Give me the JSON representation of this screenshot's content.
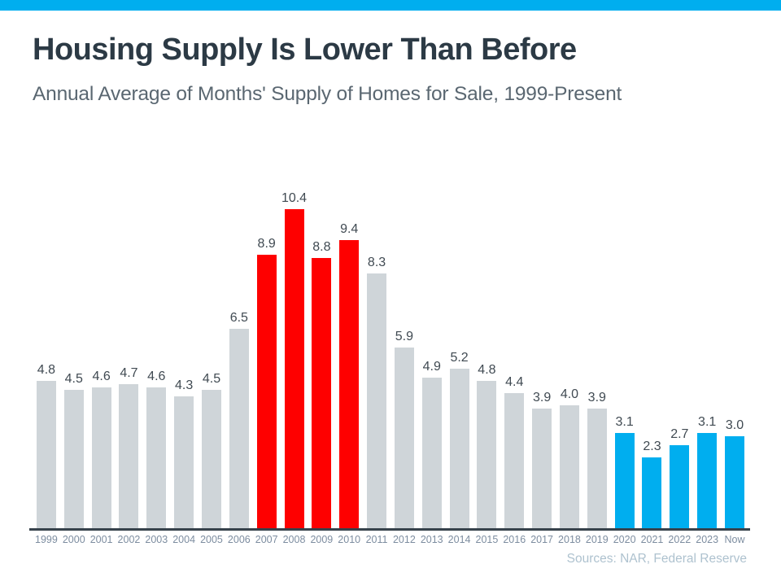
{
  "header": {
    "title": "Housing Supply Is Lower Than Before",
    "subtitle": "Annual Average of Months' Supply of Homes for Sale, 1999-Present"
  },
  "footer": {
    "source": "Sources: NAR, Federal Reserve"
  },
  "colors": {
    "accent_band": "#00AEEF",
    "bar_default": "#CFD5D9",
    "bar_crisis": "#FE0000",
    "bar_recent": "#00AEEF",
    "axis_line": "#37424C",
    "title_text": "#2C3A45",
    "subtitle_text": "#5A6771",
    "value_label": "#404A52",
    "year_label": "#7D8DA0",
    "source_text": "#AEC2CF"
  },
  "chart_data": {
    "type": "bar",
    "title": "Housing Supply Is Lower Than Before",
    "subtitle": "Annual Average of Months' Supply of Homes for Sale, 1999-Present",
    "categories": [
      "1999",
      "2000",
      "2001",
      "2002",
      "2003",
      "2004",
      "2005",
      "2006",
      "2007",
      "2008",
      "2009",
      "2010",
      "2011",
      "2012",
      "2013",
      "2014",
      "2015",
      "2016",
      "2017",
      "2018",
      "2019",
      "2020",
      "2021",
      "2022",
      "2023",
      "Now"
    ],
    "values": [
      4.8,
      4.5,
      4.6,
      4.7,
      4.6,
      4.3,
      4.5,
      6.5,
      8.9,
      10.4,
      8.8,
      9.4,
      8.3,
      5.9,
      4.9,
      5.2,
      4.8,
      4.4,
      3.9,
      4.0,
      3.9,
      3.1,
      2.3,
      2.7,
      3.1,
      3.0
    ],
    "bar_groups": [
      "default",
      "default",
      "default",
      "default",
      "default",
      "default",
      "default",
      "default",
      "crisis",
      "crisis",
      "crisis",
      "crisis",
      "default",
      "default",
      "default",
      "default",
      "default",
      "default",
      "default",
      "default",
      "default",
      "recent",
      "recent",
      "recent",
      "recent",
      "recent"
    ],
    "value_labels": true,
    "value_label_decimals": 1,
    "xlabel": "",
    "ylabel": "",
    "ylim": [
      0,
      10.4
    ],
    "grid": false,
    "legend_position": "none",
    "source": "Sources: NAR, Federal Reserve"
  }
}
